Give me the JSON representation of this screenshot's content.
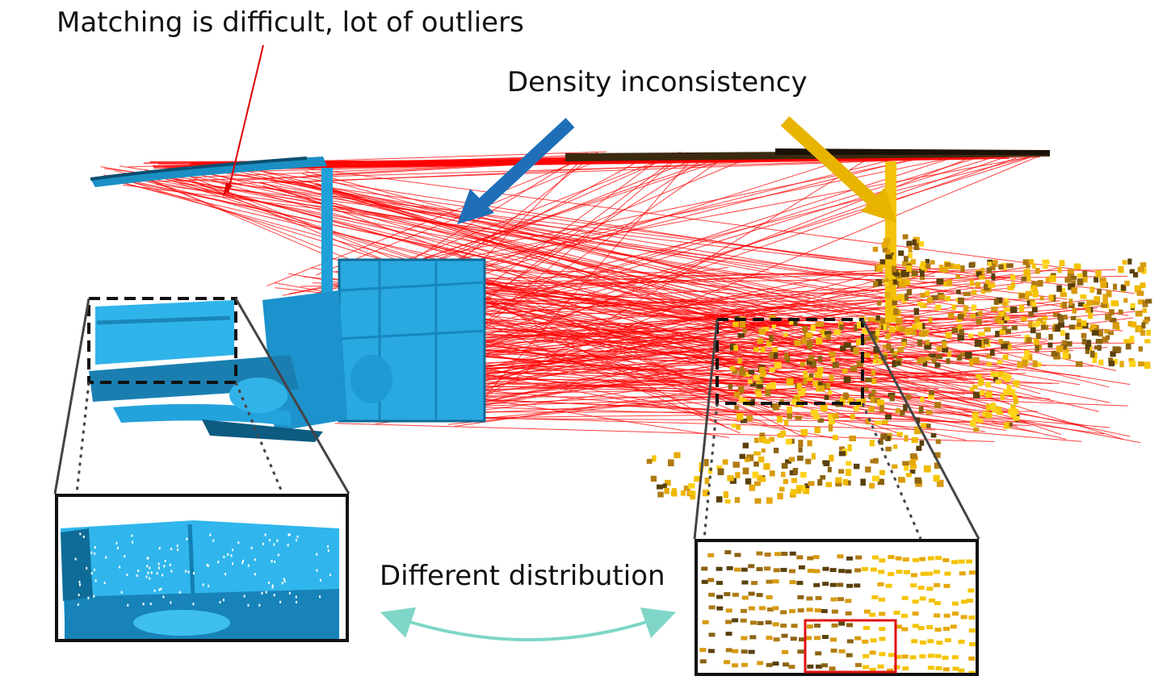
{
  "labels": {
    "matching": "Matching is difficult, lot of outliers",
    "density": "Density inconsistency",
    "distribution": "Different distribution"
  },
  "colors": {
    "source_cloud": "#1fa8e0",
    "source_dark": "#0b5c80",
    "target_cloud": "#f5c400",
    "target_dark": "#6b4f10",
    "correspondence": "#ff0000",
    "arrow_blue": "#1f6fb8",
    "arrow_gold": "#e8b400",
    "double_arrow": "#7fd6c8",
    "frame": "#111111",
    "highlight_box": "#e01010"
  },
  "icons": [
    "callout-pointer",
    "blue-arrow-icon",
    "gold-arrow-icon",
    "double-arrow-icon"
  ]
}
